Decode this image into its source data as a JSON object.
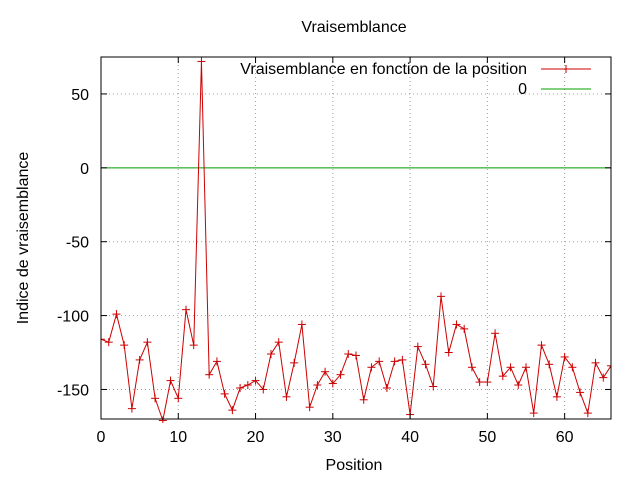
{
  "chart_data": {
    "type": "line",
    "title": "Vraisemblance",
    "xlabel": "Position",
    "ylabel": "Indice de vraisemblance",
    "xlim": [
      0,
      66
    ],
    "ylim": [
      -170,
      75
    ],
    "xticks": [
      0,
      10,
      20,
      30,
      40,
      50,
      60
    ],
    "yticks": [
      50,
      0,
      -50,
      -100,
      -150
    ],
    "grid": true,
    "legend_position": "top-right",
    "series": [
      {
        "name": "Vraisemblance en fonction de la position",
        "color": "#cc0000",
        "marker": "plus",
        "x": [
          0,
          1,
          2,
          3,
          4,
          5,
          6,
          7,
          8,
          9,
          10,
          11,
          12,
          13,
          14,
          15,
          16,
          17,
          18,
          19,
          20,
          21,
          22,
          23,
          24,
          25,
          26,
          27,
          28,
          29,
          30,
          31,
          32,
          33,
          34,
          35,
          36,
          37,
          38,
          39,
          40,
          41,
          42,
          43,
          44,
          45,
          46,
          47,
          48,
          49,
          50,
          51,
          52,
          53,
          54,
          55,
          56,
          57,
          58,
          59,
          60,
          61,
          62,
          63,
          64,
          65,
          66
        ],
        "values": [
          -116,
          -118,
          -99,
          -120,
          -163,
          -130,
          -118,
          -156,
          -171,
          -144,
          -156,
          -96,
          -120,
          72,
          -140,
          -131,
          -153,
          -164,
          -149,
          -147,
          -144,
          -150,
          -126,
          -118,
          -155,
          -132,
          -106,
          -162,
          -147,
          -138,
          -146,
          -140,
          -126,
          -127,
          -157,
          -135,
          -131,
          -149,
          -131,
          -130,
          -167,
          -121,
          -133,
          -148,
          -87,
          -125,
          -106,
          -109,
          -135,
          -145,
          -145,
          -112,
          -141,
          -135,
          -147,
          -135,
          -166,
          -120,
          -133,
          -155,
          -128,
          -135,
          -152,
          -166,
          -132,
          -142,
          -134
        ]
      },
      {
        "name": "0",
        "color": "#00a000",
        "marker": "none",
        "x": [
          0,
          66
        ],
        "values": [
          0,
          0
        ]
      }
    ]
  }
}
